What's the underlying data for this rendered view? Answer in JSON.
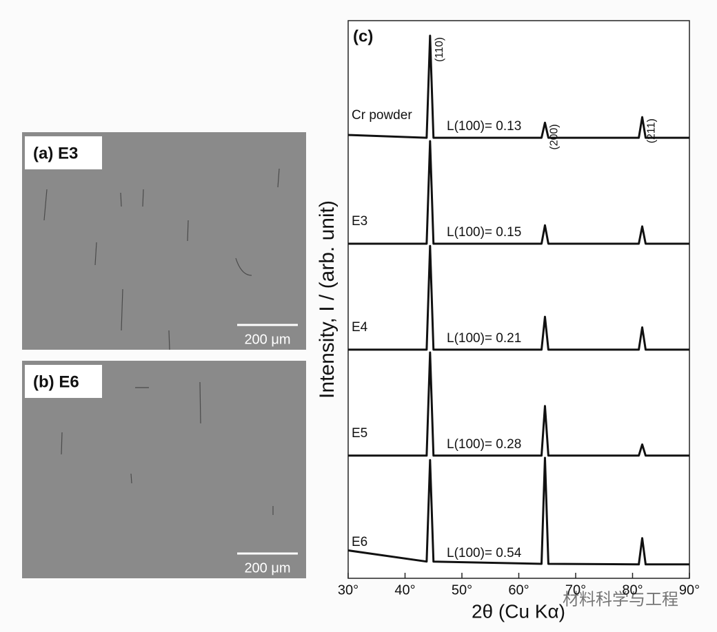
{
  "panels": [
    {
      "label": "(a) E3",
      "scale_bar": "200 μm"
    },
    {
      "label": "(b) E6",
      "scale_bar": "200 μm"
    }
  ],
  "chart_data": {
    "type": "line",
    "panel_label": "(c)",
    "x_label": "2θ (Cu Kα)",
    "y_label": "Intensity, I / (arb. unit)",
    "x": [
      30,
      43.8,
      44.4,
      45.0,
      64.0,
      64.6,
      65.2,
      81.1,
      81.7,
      82.3,
      90
    ],
    "xlim": [
      30,
      90
    ],
    "ylim": [
      0,
      100
    ],
    "xticks": [
      {
        "value": 30,
        "label": "30°"
      },
      {
        "value": 40,
        "label": "40°"
      },
      {
        "value": 50,
        "label": "50°"
      },
      {
        "value": 60,
        "label": "60°"
      },
      {
        "value": 70,
        "label": "70°"
      },
      {
        "value": 80,
        "label": "80°"
      },
      {
        "value": 90,
        "label": "90°"
      }
    ],
    "grid": false,
    "series": [
      {
        "name": "Cr powder",
        "color": "#111111",
        "values": [
          79.5,
          79,
          97.3,
          79,
          79,
          81.7,
          79,
          79,
          82.7,
          79,
          79
        ]
      },
      {
        "name": "E3",
        "color": "#111111",
        "values": [
          60,
          60,
          78.4,
          60,
          60,
          63.3,
          60,
          60,
          63.1,
          60,
          60
        ]
      },
      {
        "name": "E4",
        "color": "#111111",
        "values": [
          41,
          41,
          59.6,
          41,
          41,
          46.9,
          41,
          41,
          45,
          41,
          41
        ]
      },
      {
        "name": "E5",
        "color": "#111111",
        "values": [
          22,
          22,
          40.5,
          22,
          22,
          30.9,
          22,
          22,
          24,
          22,
          22
        ]
      },
      {
        "name": "E6",
        "color": "#111111",
        "values": [
          5,
          3,
          21.2,
          3,
          2.6,
          21.6,
          2.6,
          2.5,
          7.2,
          2.5,
          2.5
        ]
      }
    ],
    "annotations": [
      "L(100)= 0.13",
      "L(100)= 0.15",
      "L(100)= 0.21",
      "L(100)= 0.28",
      "L(100)= 0.54"
    ],
    "peak_labels": [
      "(110)",
      "(200)",
      "(211)"
    ]
  },
  "watermark": "材料科学与工程"
}
